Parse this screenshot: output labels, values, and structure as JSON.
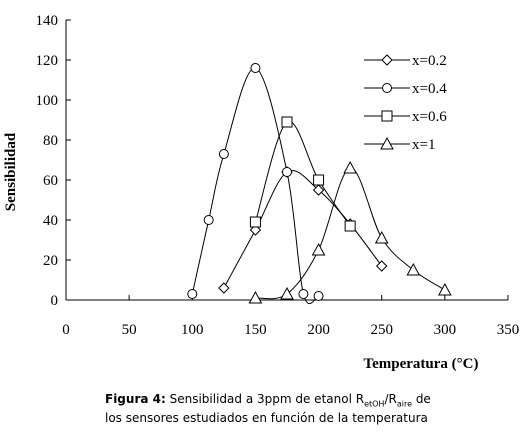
{
  "chart_data": {
    "type": "line",
    "title": "",
    "xlabel": "Temperatura (°C)",
    "ylabel": "Sensibilidad",
    "xlim": [
      0,
      350
    ],
    "ylim": [
      0,
      140
    ],
    "x_ticks": [
      "0",
      "50",
      "100",
      "150",
      "200",
      "250",
      "300",
      "350"
    ],
    "y_ticks": [
      "0",
      "20",
      "40",
      "60",
      "80",
      "100",
      "120",
      "140"
    ],
    "grid": false,
    "legend_position": "top-right",
    "series": [
      {
        "name": "x=0.2",
        "marker": "diamond",
        "points": [
          [
            125,
            6
          ],
          [
            150,
            35
          ],
          [
            175,
            64
          ],
          [
            200,
            55
          ],
          [
            225,
            38
          ],
          [
            250,
            17
          ]
        ]
      },
      {
        "name": "x=0.4",
        "marker": "circle",
        "points": [
          [
            100,
            3
          ],
          [
            113,
            40
          ],
          [
            125,
            73
          ],
          [
            150,
            116
          ],
          [
            175,
            64
          ],
          [
            188,
            3
          ],
          [
            200,
            2
          ]
        ]
      },
      {
        "name": "x=0.6",
        "marker": "square",
        "points": [
          [
            150,
            39
          ],
          [
            175,
            89
          ],
          [
            200,
            60
          ],
          [
            225,
            37
          ]
        ]
      },
      {
        "name": "x=1",
        "marker": "triangle",
        "points": [
          [
            150,
            1
          ],
          [
            175,
            3
          ],
          [
            200,
            25
          ],
          [
            225,
            66
          ],
          [
            250,
            31
          ],
          [
            275,
            15
          ],
          [
            300,
            5
          ]
        ]
      }
    ]
  },
  "caption": {
    "figure_label": "Figura 4:",
    "line1_pre": " Sensibilidad a 3ppm de etanol R",
    "sub1": "etOH",
    "mid": "/R",
    "sub2": "aire",
    "line1_post": " de",
    "line2": "los sensores estudiados en función de la temperatura"
  }
}
